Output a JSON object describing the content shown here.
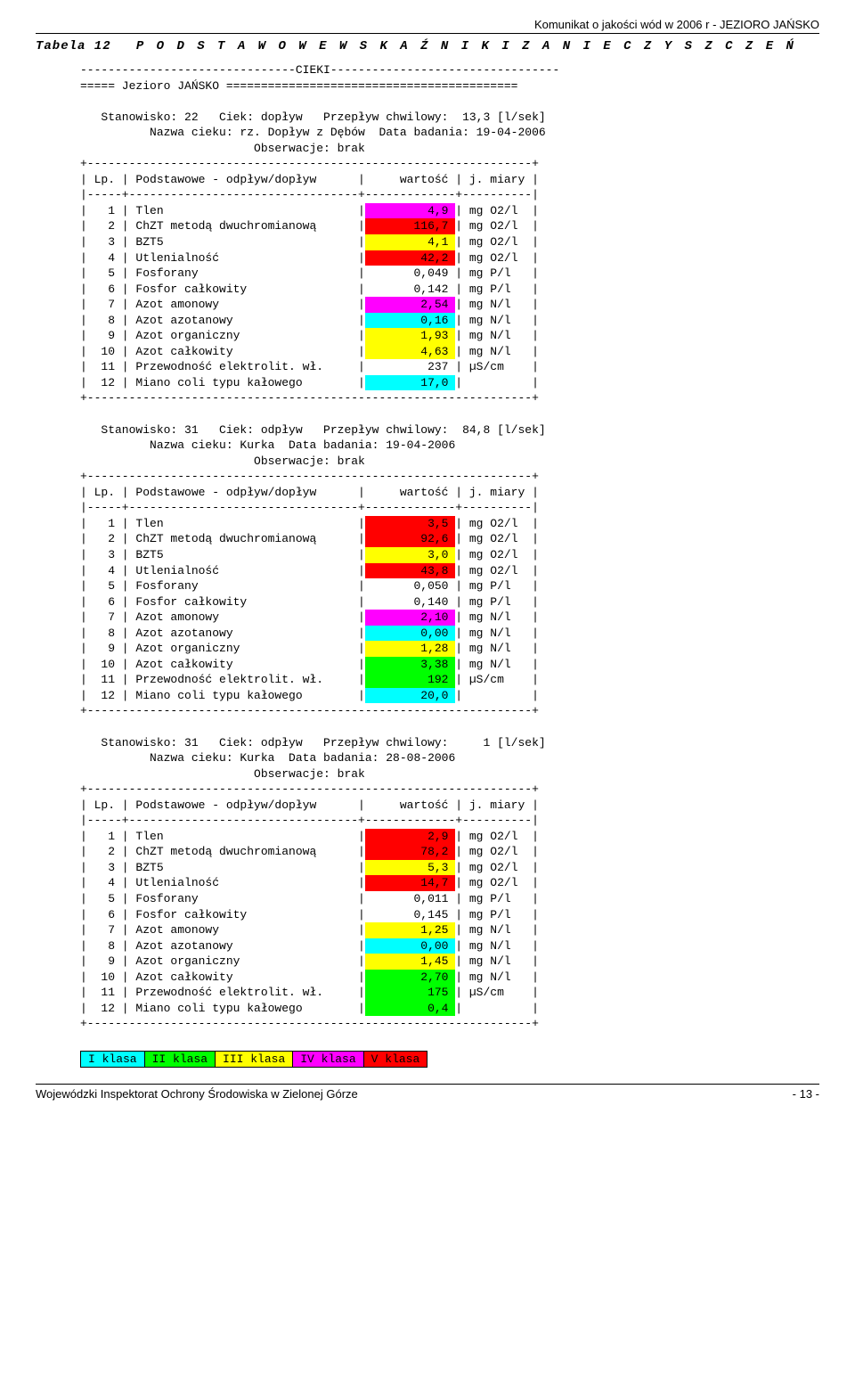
{
  "header_right": "Komunikat o jakości wód w 2006 r - JEZIORO JAŃSKO",
  "table_label": "Tabela 12",
  "table_title": "P O D S T A W O W E   W S K A Ź N I K I   Z A N I E C Z Y S Z C Z E Ń",
  "divider_cieki": "-------------------------------CIEKI---------------------------------",
  "lake_line": "===== Jezioro JAŃSKO ==========================================",
  "lp_header": "| Lp. | Podstawowe - odpływ/dopływ      |     wartość | j. miary |",
  "lp_sep": "|-----+---------------------------------+-------------+----------|",
  "plus_line": "+----------------------------------------------------------------+",
  "colors": {
    "mag": "#ff00ff",
    "red": "#ff0000",
    "yel": "#ffff00",
    "grn": "#00ff00",
    "cyn": "#00ffff",
    "none": ""
  },
  "stations": [
    {
      "line1": "Stanowisko: 22   Ciek: dopływ   Przepływ chwilowy:  13,3 [l/sek]",
      "line2": "Nazwa cieku: rz. Dopływ z Dębów  Data badania: 19-04-2006",
      "line3": "Obserwacje: brak",
      "rows": [
        {
          "n": "1",
          "name": "Tlen",
          "val": "4,9",
          "unit": "mg O2/l",
          "c": "mag"
        },
        {
          "n": "2",
          "name": "ChZT metodą dwuchromianową",
          "val": "116,7",
          "unit": "mg O2/l",
          "c": "red"
        },
        {
          "n": "3",
          "name": "BZT5",
          "val": "4,1",
          "unit": "mg O2/l",
          "c": "yel"
        },
        {
          "n": "4",
          "name": "Utlenialność",
          "val": "42,2",
          "unit": "mg O2/l",
          "c": "red"
        },
        {
          "n": "5",
          "name": "Fosforany",
          "val": "0,049",
          "unit": "mg P/l",
          "c": "none"
        },
        {
          "n": "6",
          "name": "Fosfor całkowity",
          "val": "0,142",
          "unit": "mg P/l",
          "c": "none"
        },
        {
          "n": "7",
          "name": "Azot amonowy",
          "val": "2,54",
          "unit": "mg N/l",
          "c": "mag"
        },
        {
          "n": "8",
          "name": "Azot azotanowy",
          "val": "0,16",
          "unit": "mg N/l",
          "c": "cyn"
        },
        {
          "n": "9",
          "name": "Azot organiczny",
          "val": "1,93",
          "unit": "mg N/l",
          "c": "yel"
        },
        {
          "n": "10",
          "name": "Azot całkowity",
          "val": "4,63",
          "unit": "mg N/l",
          "c": "yel"
        },
        {
          "n": "11",
          "name": "Przewodność elektrolit. wł.",
          "val": "237",
          "unit": "µS/cm",
          "c": "none"
        },
        {
          "n": "12",
          "name": "Miano coli typu kałowego",
          "val": "17,0",
          "unit": "",
          "c": "cyn"
        }
      ]
    },
    {
      "line1": "Stanowisko: 31   Ciek: odpływ   Przepływ chwilowy:  84,8 [l/sek]",
      "line2": "Nazwa cieku: Kurka  Data badania: 19-04-2006",
      "line3": "Obserwacje: brak",
      "rows": [
        {
          "n": "1",
          "name": "Tlen",
          "val": "3,5",
          "unit": "mg O2/l",
          "c": "red"
        },
        {
          "n": "2",
          "name": "ChZT metodą dwuchromianową",
          "val": "92,6",
          "unit": "mg O2/l",
          "c": "red"
        },
        {
          "n": "3",
          "name": "BZT5",
          "val": "3,0",
          "unit": "mg O2/l",
          "c": "yel"
        },
        {
          "n": "4",
          "name": "Utlenialność",
          "val": "43,8",
          "unit": "mg O2/l",
          "c": "red"
        },
        {
          "n": "5",
          "name": "Fosforany",
          "val": "0,050",
          "unit": "mg P/l",
          "c": "none"
        },
        {
          "n": "6",
          "name": "Fosfor całkowity",
          "val": "0,140",
          "unit": "mg P/l",
          "c": "none"
        },
        {
          "n": "7",
          "name": "Azot amonowy",
          "val": "2,10",
          "unit": "mg N/l",
          "c": "mag"
        },
        {
          "n": "8",
          "name": "Azot azotanowy",
          "val": "0,00",
          "unit": "mg N/l",
          "c": "cyn"
        },
        {
          "n": "9",
          "name": "Azot organiczny",
          "val": "1,28",
          "unit": "mg N/l",
          "c": "yel"
        },
        {
          "n": "10",
          "name": "Azot całkowity",
          "val": "3,38",
          "unit": "mg N/l",
          "c": "grn"
        },
        {
          "n": "11",
          "name": "Przewodność elektrolit. wł.",
          "val": "192",
          "unit": "µS/cm",
          "c": "grn"
        },
        {
          "n": "12",
          "name": "Miano coli typu kałowego",
          "val": "20,0",
          "unit": "",
          "c": "cyn"
        }
      ]
    },
    {
      "line1": "Stanowisko: 31   Ciek: odpływ   Przepływ chwilowy:     1 [l/sek]",
      "line2": "Nazwa cieku: Kurka  Data badania: 28-08-2006",
      "line3": "Obserwacje: brak",
      "rows": [
        {
          "n": "1",
          "name": "Tlen",
          "val": "2,9",
          "unit": "mg O2/l",
          "c": "red"
        },
        {
          "n": "2",
          "name": "ChZT metodą dwuchromianową",
          "val": "78,2",
          "unit": "mg O2/l",
          "c": "red"
        },
        {
          "n": "3",
          "name": "BZT5",
          "val": "5,3",
          "unit": "mg O2/l",
          "c": "yel"
        },
        {
          "n": "4",
          "name": "Utlenialność",
          "val": "14,7",
          "unit": "mg O2/l",
          "c": "red"
        },
        {
          "n": "5",
          "name": "Fosforany",
          "val": "0,011",
          "unit": "mg P/l",
          "c": "none"
        },
        {
          "n": "6",
          "name": "Fosfor całkowity",
          "val": "0,145",
          "unit": "mg P/l",
          "c": "none"
        },
        {
          "n": "7",
          "name": "Azot amonowy",
          "val": "1,25",
          "unit": "mg N/l",
          "c": "yel"
        },
        {
          "n": "8",
          "name": "Azot azotanowy",
          "val": "0,00",
          "unit": "mg N/l",
          "c": "cyn"
        },
        {
          "n": "9",
          "name": "Azot organiczny",
          "val": "1,45",
          "unit": "mg N/l",
          "c": "yel"
        },
        {
          "n": "10",
          "name": "Azot całkowity",
          "val": "2,70",
          "unit": "mg N/l",
          "c": "grn"
        },
        {
          "n": "11",
          "name": "Przewodność elektrolit. wł.",
          "val": "175",
          "unit": "µS/cm",
          "c": "grn"
        },
        {
          "n": "12",
          "name": "Miano coli typu kałowego",
          "val": "0,4",
          "unit": "",
          "c": "grn"
        }
      ]
    }
  ],
  "legend": [
    {
      "label": "I klasa",
      "c": "cyn"
    },
    {
      "label": "II klasa",
      "c": "grn"
    },
    {
      "label": "III klasa",
      "c": "yel"
    },
    {
      "label": "IV klasa",
      "c": "mag"
    },
    {
      "label": "V klasa",
      "c": "red"
    }
  ],
  "footer_left": "Wojewódzki Inspektorat Ochrony Środowiska w Zielonej Górze",
  "footer_right": "- 13 -"
}
